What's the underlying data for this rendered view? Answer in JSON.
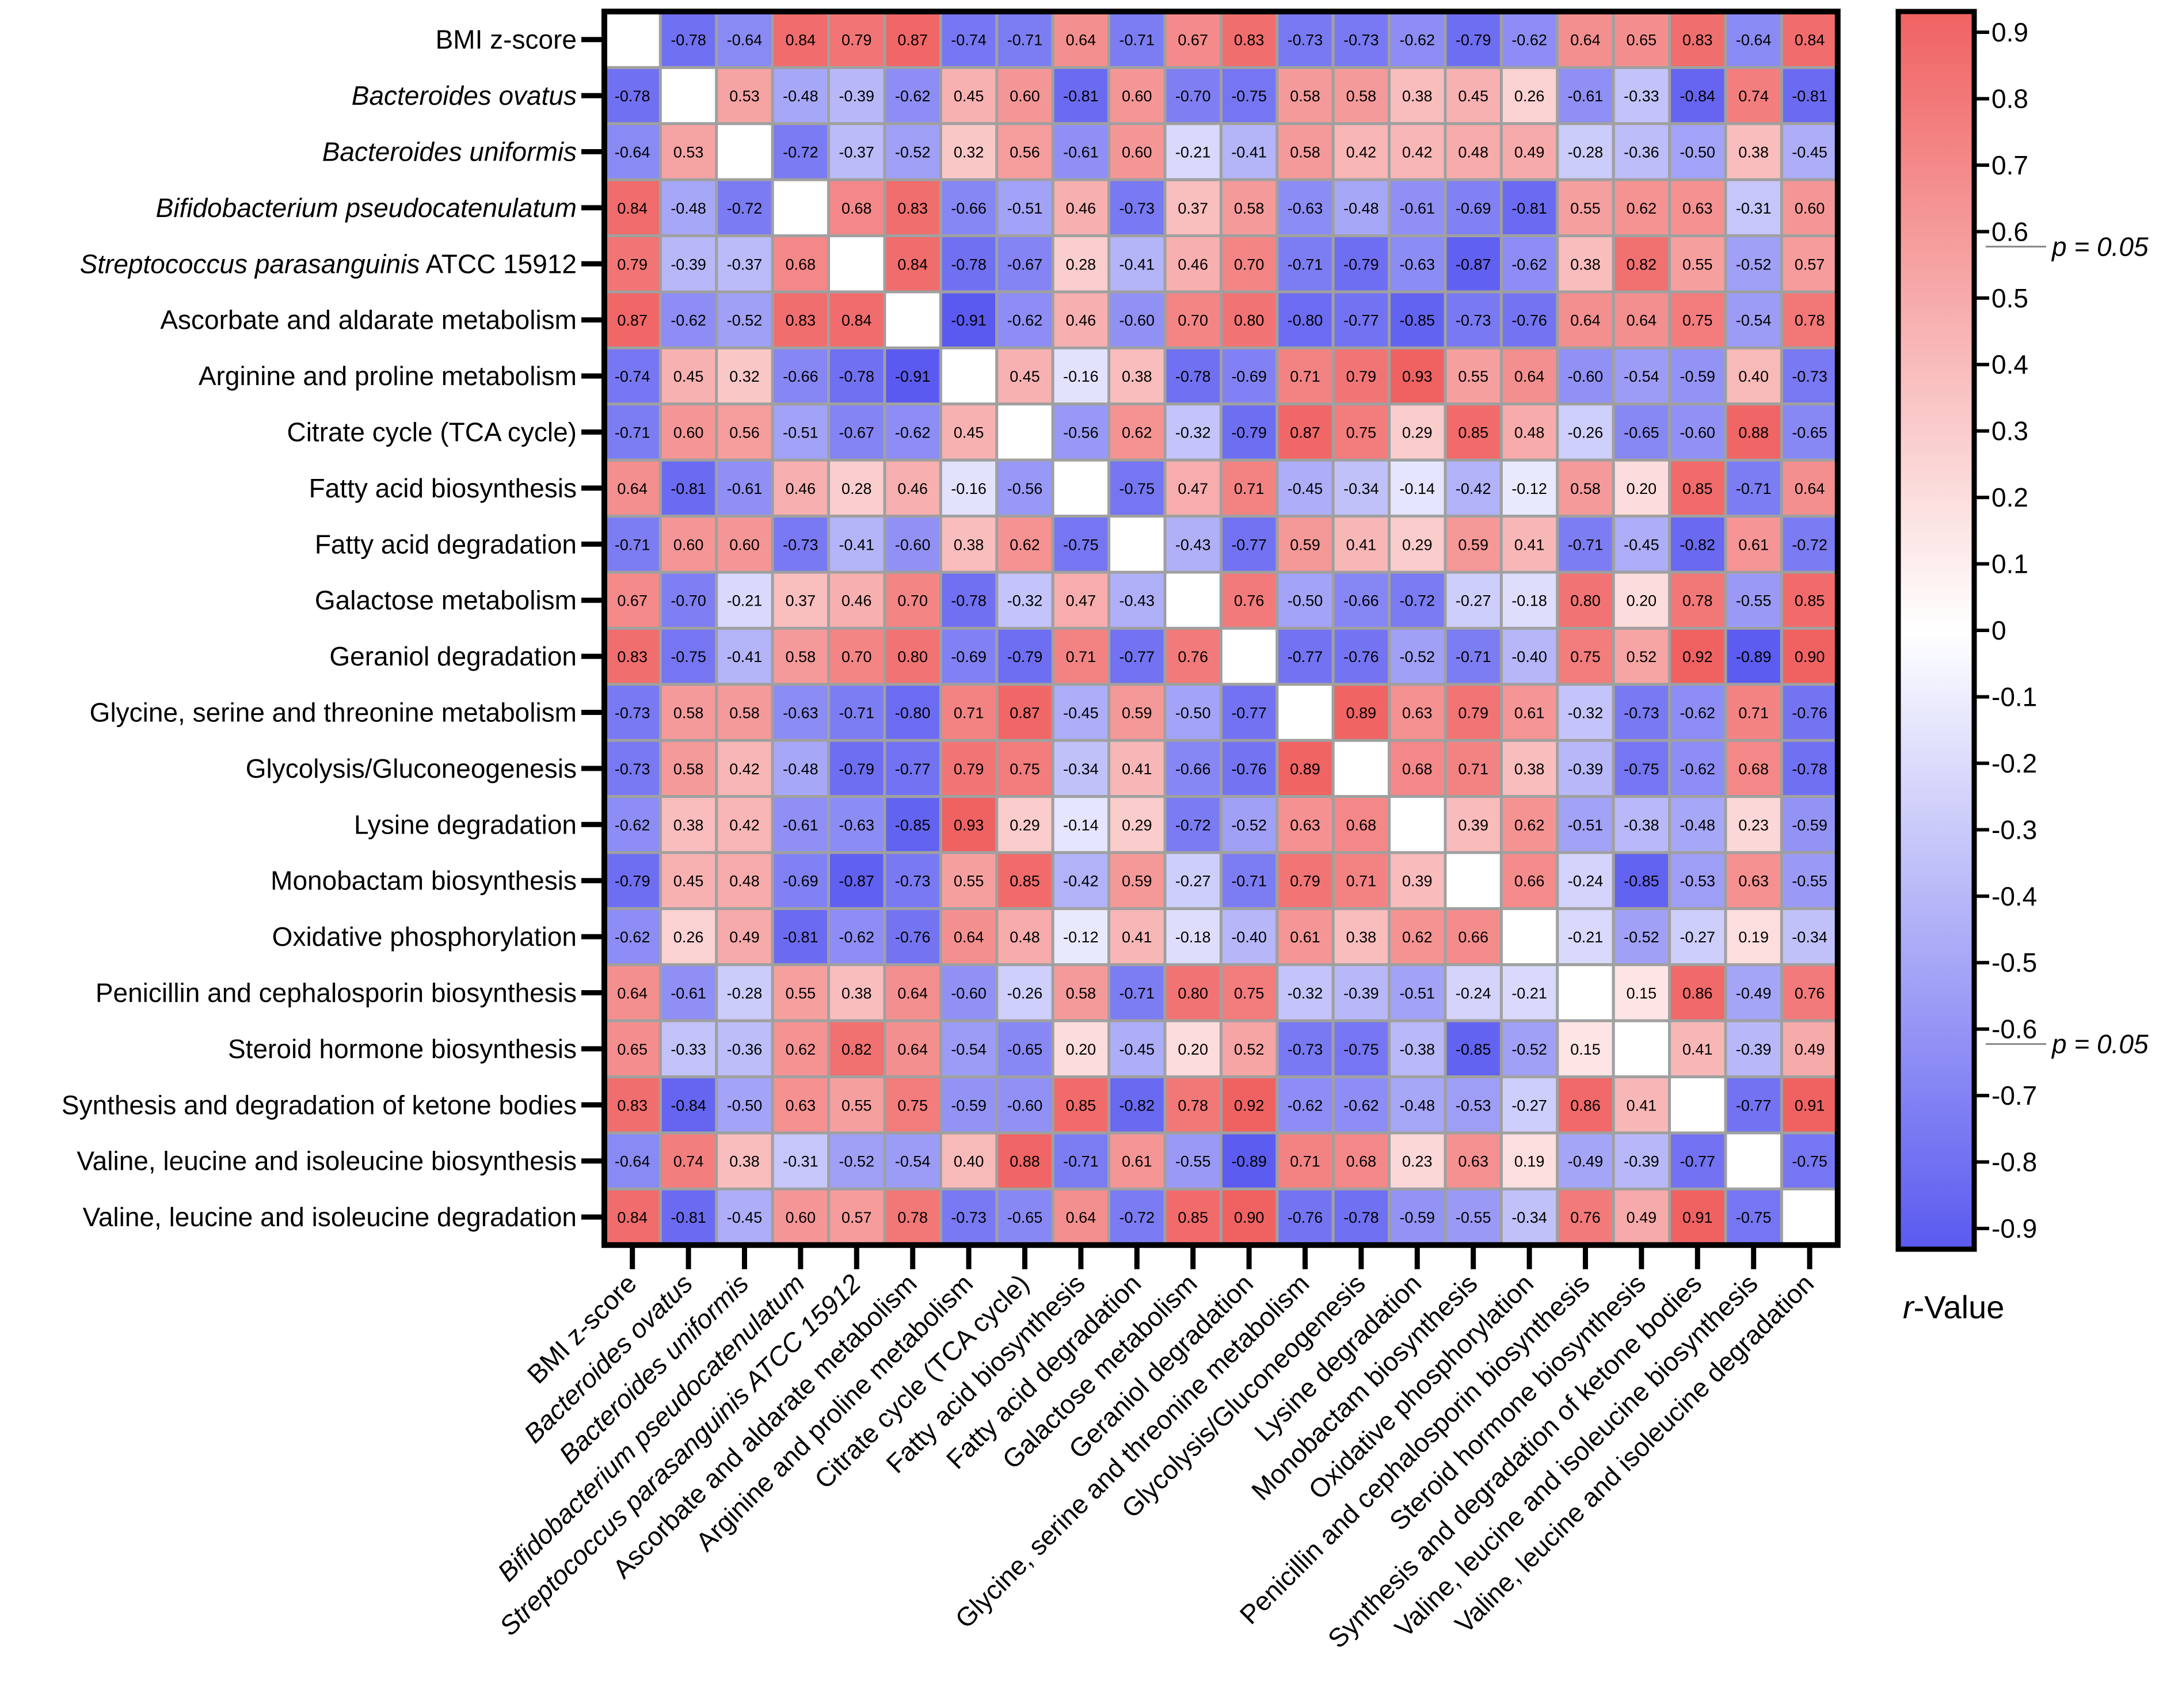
{
  "chart_data": {
    "type": "heatmap",
    "title": "",
    "colorbar_title_prefix": "r",
    "colorbar_title_suffix": "-Value",
    "significance_label": "p = 0.05",
    "significance_thresholds": [
      0.6,
      -0.6
    ],
    "color_range": [
      -0.9,
      0.9
    ],
    "colors": {
      "negative": "#5a5af0",
      "neutral": "#ffffff",
      "positive": "#f06262",
      "diagonal": "#ffffff",
      "grid": "#a0a0a0"
    },
    "colorbar_ticks": [
      "0.9",
      "0.8",
      "0.7",
      "0.6",
      "0.5",
      "0.4",
      "0.3",
      "0.2",
      "0.1",
      "0",
      "-0.1",
      "-0.2",
      "-0.3",
      "-0.4",
      "-0.5",
      "-0.6",
      "-0.7",
      "-0.8",
      "-0.9"
    ],
    "labels": [
      {
        "name": "BMI z-score",
        "italic": ""
      },
      {
        "name": "",
        "italic": "Bacteroides ovatus"
      },
      {
        "name": "",
        "italic": "Bacteroides uniformis"
      },
      {
        "name": "",
        "italic": "Bifidobacterium pseudocatenulatum"
      },
      {
        "name": " ATCC 15912",
        "italic": "Streptococcus parasanguinis"
      },
      {
        "name": "Ascorbate and aldarate metabolism",
        "italic": ""
      },
      {
        "name": "Arginine and proline metabolism",
        "italic": ""
      },
      {
        "name": "Citrate cycle (TCA cycle)",
        "italic": ""
      },
      {
        "name": "Fatty acid biosynthesis",
        "italic": ""
      },
      {
        "name": "Fatty acid degradation",
        "italic": ""
      },
      {
        "name": "Galactose metabolism",
        "italic": ""
      },
      {
        "name": "Geraniol degradation",
        "italic": ""
      },
      {
        "name": "Glycine, serine and threonine metabolism",
        "italic": ""
      },
      {
        "name": "Glycolysis/Gluconeogenesis",
        "italic": ""
      },
      {
        "name": "Lysine degradation",
        "italic": ""
      },
      {
        "name": "Monobactam biosynthesis",
        "italic": ""
      },
      {
        "name": "Oxidative phosphorylation",
        "italic": ""
      },
      {
        "name": "Penicillin and cephalosporin biosynthesis",
        "italic": ""
      },
      {
        "name": "Steroid hormone biosynthesis",
        "italic": ""
      },
      {
        "name": "Synthesis and degradation of ketone bodies",
        "italic": ""
      },
      {
        "name": "Valine, leucine and isoleucine biosynthesis",
        "italic": ""
      },
      {
        "name": "Valine, leucine and isoleucine degradation",
        "italic": ""
      }
    ],
    "matrix": [
      [
        null,
        "-0.78",
        "-0.64",
        "0.84",
        "0.79",
        "0.87",
        "-0.74",
        "-0.71",
        "0.64",
        "-0.71",
        "0.67",
        "0.83",
        "-0.73",
        "-0.73",
        "-0.62",
        "-0.79",
        "-0.62",
        "0.64",
        "0.65",
        "0.83",
        "-0.64",
        "0.84"
      ],
      [
        "-0.78",
        null,
        "0.53",
        "-0.48",
        "-0.39",
        "-0.62",
        "0.45",
        "0.60",
        "-0.81",
        "0.60",
        "-0.70",
        "-0.75",
        "0.58",
        "0.58",
        "0.38",
        "0.45",
        "0.26",
        "-0.61",
        "-0.33",
        "-0.84",
        "0.74",
        "-0.81"
      ],
      [
        "-0.64",
        "0.53",
        null,
        "-0.72",
        "-0.37",
        "-0.52",
        "0.32",
        "0.56",
        "-0.61",
        "0.60",
        "-0.21",
        "-0.41",
        "0.58",
        "0.42",
        "0.42",
        "0.48",
        "0.49",
        "-0.28",
        "-0.36",
        "-0.50",
        "0.38",
        "-0.45"
      ],
      [
        "0.84",
        "-0.48",
        "-0.72",
        null,
        "0.68",
        "0.83",
        "-0.66",
        "-0.51",
        "0.46",
        "-0.73",
        "0.37",
        "0.58",
        "-0.63",
        "-0.48",
        "-0.61",
        "-0.69",
        "-0.81",
        "0.55",
        "0.62",
        "0.63",
        "-0.31",
        "0.60"
      ],
      [
        "0.79",
        "-0.39",
        "-0.37",
        "0.68",
        null,
        "0.84",
        "-0.78",
        "-0.67",
        "0.28",
        "-0.41",
        "0.46",
        "0.70",
        "-0.71",
        "-0.79",
        "-0.63",
        "-0.87",
        "-0.62",
        "0.38",
        "0.82",
        "0.55",
        "-0.52",
        "0.57"
      ],
      [
        "0.87",
        "-0.62",
        "-0.52",
        "0.83",
        "0.84",
        null,
        "-0.91",
        "-0.62",
        "0.46",
        "-0.60",
        "0.70",
        "0.80",
        "-0.80",
        "-0.77",
        "-0.85",
        "-0.73",
        "-0.76",
        "0.64",
        "0.64",
        "0.75",
        "-0.54",
        "0.78"
      ],
      [
        "-0.74",
        "0.45",
        "0.32",
        "-0.66",
        "-0.78",
        "-0.91",
        null,
        "0.45",
        "-0.16",
        "0.38",
        "-0.78",
        "-0.69",
        "0.71",
        "0.79",
        "0.93",
        "0.55",
        "0.64",
        "-0.60",
        "-0.54",
        "-0.59",
        "0.40",
        "-0.73"
      ],
      [
        "-0.71",
        "0.60",
        "0.56",
        "-0.51",
        "-0.67",
        "-0.62",
        "0.45",
        null,
        "-0.56",
        "0.62",
        "-0.32",
        "-0.79",
        "0.87",
        "0.75",
        "0.29",
        "0.85",
        "0.48",
        "-0.26",
        "-0.65",
        "-0.60",
        "0.88",
        "-0.65"
      ],
      [
        "0.64",
        "-0.81",
        "-0.61",
        "0.46",
        "0.28",
        "0.46",
        "-0.16",
        "-0.56",
        null,
        "-0.75",
        "0.47",
        "0.71",
        "-0.45",
        "-0.34",
        "-0.14",
        "-0.42",
        "-0.12",
        "0.58",
        "0.20",
        "0.85",
        "-0.71",
        "0.64"
      ],
      [
        "-0.71",
        "0.60",
        "0.60",
        "-0.73",
        "-0.41",
        "-0.60",
        "0.38",
        "0.62",
        "-0.75",
        null,
        "-0.43",
        "-0.77",
        "0.59",
        "0.41",
        "0.29",
        "0.59",
        "0.41",
        "-0.71",
        "-0.45",
        "-0.82",
        "0.61",
        "-0.72"
      ],
      [
        "0.67",
        "-0.70",
        "-0.21",
        "0.37",
        "0.46",
        "0.70",
        "-0.78",
        "-0.32",
        "0.47",
        "-0.43",
        null,
        "0.76",
        "-0.50",
        "-0.66",
        "-0.72",
        "-0.27",
        "-0.18",
        "0.80",
        "0.20",
        "0.78",
        "-0.55",
        "0.85"
      ],
      [
        "0.83",
        "-0.75",
        "-0.41",
        "0.58",
        "0.70",
        "0.80",
        "-0.69",
        "-0.79",
        "0.71",
        "-0.77",
        "0.76",
        null,
        "-0.77",
        "-0.76",
        "-0.52",
        "-0.71",
        "-0.40",
        "0.75",
        "0.52",
        "0.92",
        "-0.89",
        "0.90"
      ],
      [
        "-0.73",
        "0.58",
        "0.58",
        "-0.63",
        "-0.71",
        "-0.80",
        "0.71",
        "0.87",
        "-0.45",
        "0.59",
        "-0.50",
        "-0.77",
        null,
        "0.89",
        "0.63",
        "0.79",
        "0.61",
        "-0.32",
        "-0.73",
        "-0.62",
        "0.71",
        "-0.76"
      ],
      [
        "-0.73",
        "0.58",
        "0.42",
        "-0.48",
        "-0.79",
        "-0.77",
        "0.79",
        "0.75",
        "-0.34",
        "0.41",
        "-0.66",
        "-0.76",
        "0.89",
        null,
        "0.68",
        "0.71",
        "0.38",
        "-0.39",
        "-0.75",
        "-0.62",
        "0.68",
        "-0.78"
      ],
      [
        "-0.62",
        "0.38",
        "0.42",
        "-0.61",
        "-0.63",
        "-0.85",
        "0.93",
        "0.29",
        "-0.14",
        "0.29",
        "-0.72",
        "-0.52",
        "0.63",
        "0.68",
        null,
        "0.39",
        "0.62",
        "-0.51",
        "-0.38",
        "-0.48",
        "0.23",
        "-0.59"
      ],
      [
        "-0.79",
        "0.45",
        "0.48",
        "-0.69",
        "-0.87",
        "-0.73",
        "0.55",
        "0.85",
        "-0.42",
        "0.59",
        "-0.27",
        "-0.71",
        "0.79",
        "0.71",
        "0.39",
        null,
        "0.66",
        "-0.24",
        "-0.85",
        "-0.53",
        "0.63",
        "-0.55"
      ],
      [
        "-0.62",
        "0.26",
        "0.49",
        "-0.81",
        "-0.62",
        "-0.76",
        "0.64",
        "0.48",
        "-0.12",
        "0.41",
        "-0.18",
        "-0.40",
        "0.61",
        "0.38",
        "0.62",
        "0.66",
        null,
        "-0.21",
        "-0.52",
        "-0.27",
        "0.19",
        "-0.34"
      ],
      [
        "0.64",
        "-0.61",
        "-0.28",
        "0.55",
        "0.38",
        "0.64",
        "-0.60",
        "-0.26",
        "0.58",
        "-0.71",
        "0.80",
        "0.75",
        "-0.32",
        "-0.39",
        "-0.51",
        "-0.24",
        "-0.21",
        null,
        "0.15",
        "0.86",
        "-0.49",
        "0.76"
      ],
      [
        "0.65",
        "-0.33",
        "-0.36",
        "0.62",
        "0.82",
        "0.64",
        "-0.54",
        "-0.65",
        "0.20",
        "-0.45",
        "0.20",
        "0.52",
        "-0.73",
        "-0.75",
        "-0.38",
        "-0.85",
        "-0.52",
        "0.15",
        null,
        "0.41",
        "-0.39",
        "0.49"
      ],
      [
        "0.83",
        "-0.84",
        "-0.50",
        "0.63",
        "0.55",
        "0.75",
        "-0.59",
        "-0.60",
        "0.85",
        "-0.82",
        "0.78",
        "0.92",
        "-0.62",
        "-0.62",
        "-0.48",
        "-0.53",
        "-0.27",
        "0.86",
        "0.41",
        null,
        "-0.77",
        "0.91"
      ],
      [
        "-0.64",
        "0.74",
        "0.38",
        "-0.31",
        "-0.52",
        "-0.54",
        "0.40",
        "0.88",
        "-0.71",
        "0.61",
        "-0.55",
        "-0.89",
        "0.71",
        "0.68",
        "0.23",
        "0.63",
        "0.19",
        "-0.49",
        "-0.39",
        "-0.77",
        null,
        "-0.75"
      ],
      [
        "0.84",
        "-0.81",
        "-0.45",
        "0.60",
        "0.57",
        "0.78",
        "-0.73",
        "-0.65",
        "0.64",
        "-0.72",
        "0.85",
        "0.90",
        "-0.76",
        "-0.78",
        "-0.59",
        "-0.55",
        "-0.34",
        "0.76",
        "0.49",
        "0.91",
        "-0.75",
        null
      ]
    ]
  }
}
